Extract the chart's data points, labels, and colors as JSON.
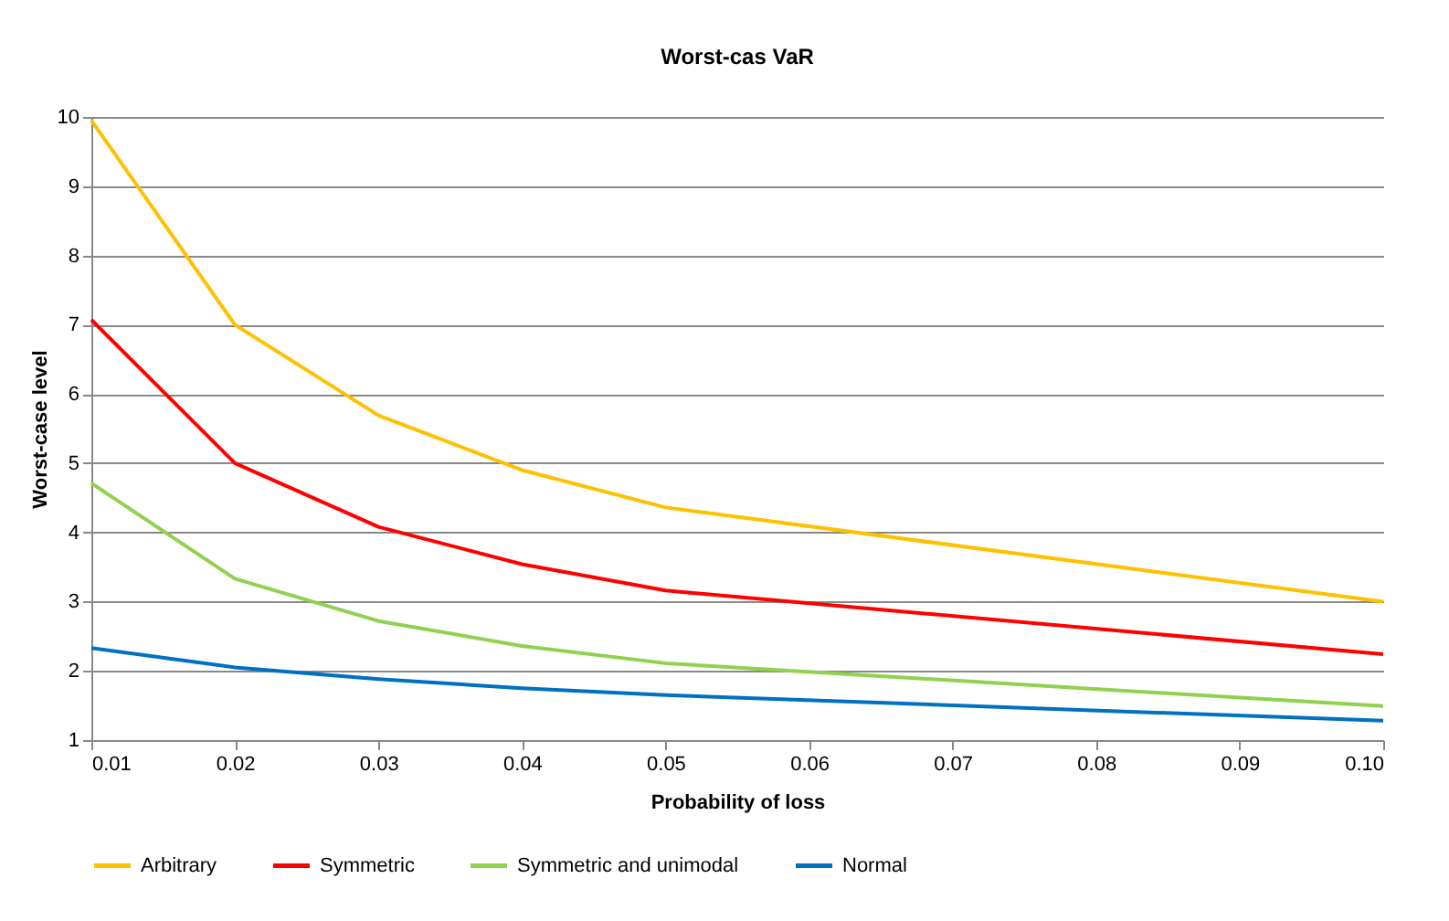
{
  "chart_data": {
    "type": "line",
    "title": "Worst-cas VaR",
    "xlabel": "Probability of loss",
    "ylabel": "Worst-case level",
    "x": [
      0.01,
      0.02,
      0.03,
      0.04,
      0.05,
      0.1
    ],
    "series": [
      {
        "name": "Arbitrary",
        "color": "#ffc000",
        "values": [
          9.95,
          7.0,
          5.69,
          4.9,
          4.36,
          3.0
        ]
      },
      {
        "name": "Symmetric",
        "color": "#ff0000",
        "values": [
          7.07,
          5.0,
          4.08,
          3.54,
          3.16,
          2.24
        ]
      },
      {
        "name": "Symmetric and unimodal",
        "color": "#92d050",
        "values": [
          4.71,
          3.33,
          2.72,
          2.36,
          2.11,
          1.49
        ]
      },
      {
        "name": "Normal",
        "color": "#0070c0",
        "values": [
          2.33,
          2.05,
          1.88,
          1.75,
          1.65,
          1.28
        ]
      }
    ],
    "xlim": [
      0.01,
      0.1
    ],
    "xticks": [
      0.01,
      0.02,
      0.03,
      0.04,
      0.05,
      0.06,
      0.07,
      0.08,
      0.09,
      {
        "value": 0.1,
        "label": "0.10"
      }
    ],
    "ylim": [
      1,
      10
    ],
    "yticks": [
      1,
      2,
      3,
      4,
      5,
      6,
      7,
      8,
      9,
      10
    ],
    "grid": "y",
    "legend": "bottom",
    "marker": "none",
    "line_style": "solid"
  }
}
